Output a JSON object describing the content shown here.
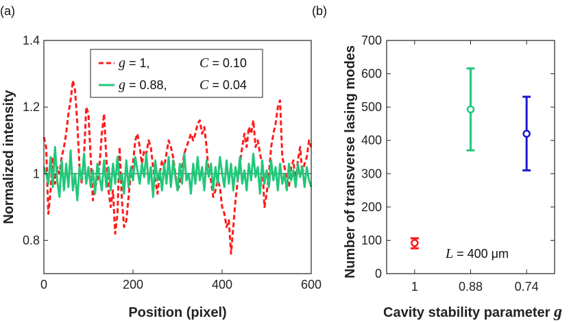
{
  "chart_data": [
    {
      "panel_label": "(a)",
      "type": "line",
      "xlabel": "Position (pixel)",
      "ylabel": "Normalized intensity",
      "xlim": [
        0,
        600
      ],
      "ylim": [
        0.7,
        1.4
      ],
      "xticks": [
        0,
        200,
        400,
        600
      ],
      "yticks": [
        0.8,
        1,
        1.2,
        1.4
      ],
      "xtick_labels": [
        "0",
        "200",
        "400",
        "600"
      ],
      "ytick_labels": [
        "0.8",
        "1",
        "1.2",
        "1.4"
      ],
      "reference_line": 1,
      "legend": [
        {
          "g_symbol": "g",
          "g_text": " = 1,",
          "c_symbol": "C",
          "c_text": " = 0.10",
          "color": "#ff1a1a",
          "style": "dashed"
        },
        {
          "g_symbol": "g",
          "g_text": " = 0.88,",
          "c_symbol": "C",
          "c_text": " = 0.04",
          "color": "#22c77a",
          "style": "solid"
        }
      ],
      "series": [
        {
          "name": "g = 1, C = 0.10",
          "color": "#ff1a1a",
          "x": [
            0,
            5,
            10,
            15,
            20,
            25,
            30,
            35,
            40,
            45,
            50,
            55,
            60,
            65,
            70,
            75,
            80,
            85,
            90,
            95,
            100,
            105,
            110,
            115,
            120,
            125,
            130,
            135,
            140,
            145,
            150,
            155,
            160,
            165,
            170,
            175,
            180,
            185,
            190,
            195,
            200,
            205,
            210,
            215,
            220,
            225,
            230,
            235,
            240,
            245,
            250,
            255,
            260,
            265,
            270,
            275,
            280,
            285,
            290,
            295,
            300,
            305,
            310,
            315,
            320,
            325,
            330,
            335,
            340,
            345,
            350,
            355,
            360,
            365,
            370,
            375,
            380,
            385,
            390,
            395,
            400,
            405,
            410,
            415,
            420,
            425,
            430,
            435,
            440,
            445,
            450,
            455,
            460,
            465,
            470,
            475,
            480,
            485,
            490,
            495,
            500,
            505,
            510,
            515,
            520,
            525,
            530,
            535,
            540,
            545,
            550,
            555,
            560,
            565,
            570,
            575,
            580,
            585,
            590,
            595,
            600
          ],
          "values": [
            1.11,
            1.08,
            0.88,
            0.95,
            1.05,
            0.97,
            1.02,
            1.0,
            1.05,
            1.08,
            1.12,
            1.18,
            1.22,
            1.28,
            1.25,
            1.15,
            1.02,
            0.97,
            1.05,
            1.2,
            1.18,
            1.05,
            0.92,
            0.96,
            0.98,
            1.03,
            1.12,
            1.18,
            1.05,
            0.95,
            0.9,
            0.95,
            0.82,
            0.88,
            1.08,
            0.92,
            0.84,
            0.86,
            0.93,
            1.0,
            1.03,
            1.1,
            1.12,
            1.08,
            1.03,
            1.07,
            1.06,
            1.1,
            1.08,
            1.02,
            0.98,
            0.94,
            1.0,
            1.04,
            1.02,
            1.06,
            1.1,
            1.08,
            1.05,
            1.0,
            0.95,
            0.97,
            1.02,
            1.06,
            1.08,
            1.1,
            1.12,
            1.1,
            1.12,
            1.15,
            1.16,
            1.12,
            1.14,
            1.08,
            1.0,
            0.98,
            0.93,
            0.95,
            0.98,
            0.96,
            0.9,
            0.88,
            0.84,
            0.86,
            0.76,
            0.84,
            0.92,
            0.98,
            1.03,
            1.08,
            1.12,
            1.08,
            1.14,
            1.12,
            1.16,
            1.08,
            1.1,
            1.06,
            1.03,
            0.9,
            0.94,
            1.0,
            1.08,
            1.12,
            1.15,
            1.2,
            1.22,
            1.05,
            1.02,
            0.98,
            0.96,
            1.02,
            1.04,
            0.97,
            1.04,
            1.08,
            1.0,
            1.03,
            1.05,
            1.1,
            1.08
          ]
        },
        {
          "name": "g = 0.88, C = 0.04",
          "color": "#22c77a",
          "x": [
            0,
            5,
            10,
            15,
            20,
            25,
            30,
            35,
            40,
            45,
            50,
            55,
            60,
            65,
            70,
            75,
            80,
            85,
            90,
            95,
            100,
            105,
            110,
            115,
            120,
            125,
            130,
            135,
            140,
            145,
            150,
            155,
            160,
            165,
            170,
            175,
            180,
            185,
            190,
            195,
            200,
            205,
            210,
            215,
            220,
            225,
            230,
            235,
            240,
            245,
            250,
            255,
            260,
            265,
            270,
            275,
            280,
            285,
            290,
            295,
            300,
            305,
            310,
            315,
            320,
            325,
            330,
            335,
            340,
            345,
            350,
            355,
            360,
            365,
            370,
            375,
            380,
            385,
            390,
            395,
            400,
            405,
            410,
            415,
            420,
            425,
            430,
            435,
            440,
            445,
            450,
            455,
            460,
            465,
            470,
            475,
            480,
            485,
            490,
            495,
            500,
            505,
            510,
            515,
            520,
            525,
            530,
            535,
            540,
            545,
            550,
            555,
            560,
            565,
            570,
            575,
            580,
            585,
            590,
            595,
            600
          ],
          "values": [
            1.02,
            1.0,
            0.97,
            1.05,
            0.96,
            1.08,
            0.98,
            0.93,
            1.04,
            0.95,
            1.03,
            0.96,
            1.07,
            0.95,
            1.0,
            0.92,
            1.02,
            0.98,
            1.06,
            0.97,
            1.02,
            0.96,
            1.01,
            0.94,
            1.03,
            0.99,
            0.95,
            1.04,
            0.96,
            1.02,
            0.95,
            1.03,
            0.97,
            1.05,
            0.98,
            1.0,
            0.94,
            1.04,
            0.96,
            1.02,
            0.98,
            1.05,
            1.01,
            0.97,
            1.03,
            0.99,
            1.06,
            0.97,
            1.02,
            0.93,
            1.04,
            0.98,
            1.01,
            0.95,
            1.03,
            0.97,
            1.05,
            0.96,
            1.04,
            0.99,
            0.95,
            1.03,
            0.97,
            1.06,
            0.98,
            1.0,
            0.94,
            1.03,
            0.97,
            1.05,
            0.98,
            1.02,
            0.95,
            1.04,
            0.99,
            1.03,
            0.95,
            1.02,
            0.97,
            1.05,
            1.0,
            0.96,
            1.04,
            0.97,
            1.03,
            0.95,
            1.02,
            0.98,
            1.05,
            0.97,
            1.01,
            0.95,
            1.03,
            0.98,
            1.06,
            0.99,
            1.02,
            0.94,
            1.04,
            0.97,
            1.01,
            0.96,
            1.04,
            0.98,
            1.02,
            0.95,
            1.03,
            0.97,
            1.0,
            0.95,
            1.03,
            0.98,
            1.01,
            0.96,
            1.03,
            0.99,
            1.02,
            0.96,
            1.02,
            0.98,
            0.96
          ]
        }
      ]
    },
    {
      "panel_label": "(b)",
      "type": "scatter",
      "xlabel": "Cavity stability parameter ",
      "xlabel_symbol": "g",
      "ylabel": "Number of transverse lasing modes",
      "categories": [
        "1",
        "0.88",
        "0.74"
      ],
      "ylim": [
        0,
        700
      ],
      "yticks": [
        0,
        100,
        200,
        300,
        400,
        500,
        600,
        700
      ],
      "ytick_labels": [
        "0",
        "100",
        "200",
        "300",
        "400",
        "500",
        "600",
        "700"
      ],
      "annotation_symbol": "L",
      "annotation_text": " = 400 μm",
      "points": [
        {
          "category": "1",
          "value": 92,
          "err_low": 76,
          "err_high": 106,
          "color": "#ff1a1a"
        },
        {
          "category": "0.88",
          "value": 493,
          "err_low": 370,
          "err_high": 616,
          "color": "#22c77a"
        },
        {
          "category": "0.74",
          "value": 420,
          "err_low": 310,
          "err_high": 531,
          "color": "#1a1acc"
        }
      ]
    }
  ]
}
